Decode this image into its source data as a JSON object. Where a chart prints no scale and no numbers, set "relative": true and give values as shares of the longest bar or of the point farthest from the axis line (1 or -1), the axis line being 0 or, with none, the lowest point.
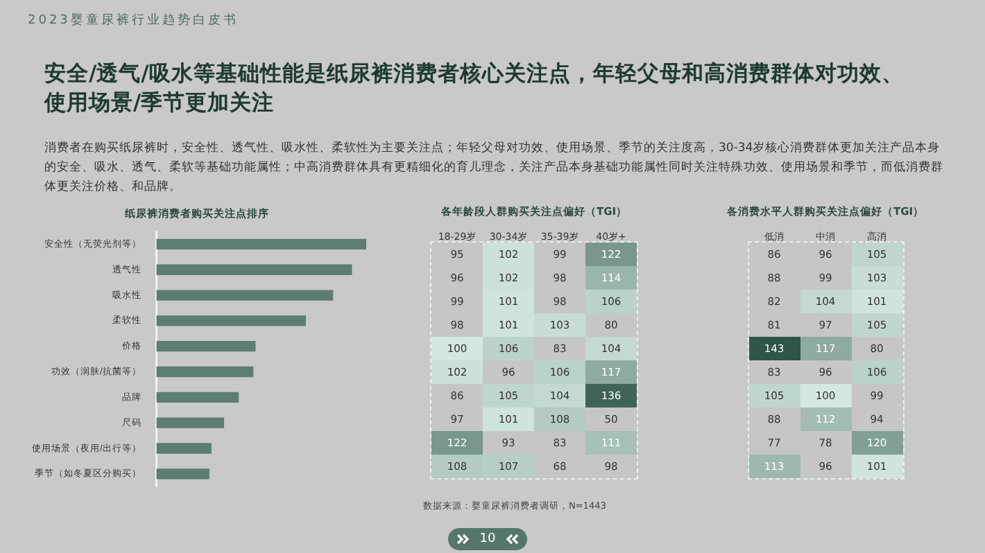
{
  "chart_data": [
    {
      "type": "bar",
      "orientation": "horizontal",
      "relative": true,
      "title": "纸尿裤消费者购买关注点排序",
      "color": "#5c7d71",
      "categories": [
        "安全性（无荧光剂等）",
        "透气性",
        "吸水性",
        "柔软性",
        "价格",
        "功效（润肤/抗菌等）",
        "品牌",
        "尺码",
        "使用场景（夜用/出行等）",
        "季节（如冬夏区分购买）"
      ],
      "values": [
        1,
        0.93,
        0.84,
        0.71,
        0.47,
        0.46,
        0.39,
        0.32,
        0.26,
        0.25
      ],
      "annotations": [
        "2023婴童尿裤行业趋势白皮书",
        "安全/透气/吸水等基础性能是纸尿裤消费者核心关注点，年轻父母和高消费群体对功效、使用场景/季节更加关注",
        "消费者在购买纸尿裤时，安全性、透气性、吸水性、柔软性为主要关注点；年轻父母对功效、使用场景、季节的关注度高，30-34岁核心消费群体更加关注产品本身的安全、吸水、透气、柔软等基础功能属性；中高消费群体具有更精细化的育儿理念，关注产品本身基础功能属性同时关注特殊功效、使用场景和季节，而低消费群体更关注价格、和品牌。",
        "数据来源：婴童尿裤消费者调研，N=1443",
        "10"
      ]
    },
    {
      "type": "heatmap",
      "title": "各年龄段人群购买关注点偏好（TGI）",
      "categories": [
        "18-29岁",
        "30-34岁",
        "35-39岁",
        "40岁+"
      ],
      "data_labels": true,
      "y_categories": [
        null,
        null,
        null,
        null,
        null,
        null,
        null,
        null,
        null,
        null
      ],
      "cells": [
        [
          95,
          102,
          99,
          122
        ],
        [
          96,
          102,
          98,
          114
        ],
        [
          99,
          101,
          98,
          106
        ],
        [
          98,
          101,
          103,
          80
        ],
        [
          100,
          106,
          83,
          104
        ],
        [
          102,
          96,
          106,
          117
        ],
        [
          86,
          105,
          104,
          136
        ],
        [
          97,
          101,
          108,
          50
        ],
        [
          122,
          93,
          83,
          111
        ],
        [
          108,
          107,
          68,
          98
        ]
      ]
    },
    {
      "type": "heatmap",
      "title": "各消费水平人群购买关注点偏好（TGI）",
      "categories": [
        "低消",
        "中消",
        "高消"
      ],
      "data_labels": true,
      "y_categories": [
        null,
        null,
        null,
        null,
        null,
        null,
        null,
        null,
        null,
        null
      ],
      "cells": [
        [
          86,
          96,
          105
        ],
        [
          88,
          99,
          103
        ],
        [
          82,
          104,
          101
        ],
        [
          81,
          97,
          105
        ],
        [
          143,
          117,
          80
        ],
        [
          83,
          96,
          106
        ],
        [
          105,
          100,
          99
        ],
        [
          88,
          112,
          94
        ],
        [
          77,
          78,
          120
        ],
        [
          113,
          96,
          101
        ]
      ]
    }
  ]
}
